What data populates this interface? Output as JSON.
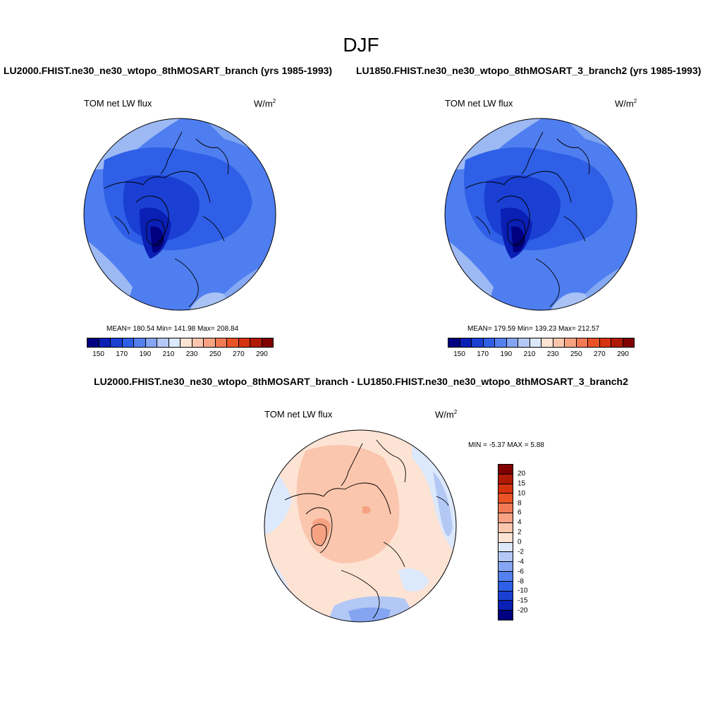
{
  "title": "DJF",
  "left_case_title": "LU2000.FHIST.ne30_ne30_wtopo_8thMOSART_branch (yrs 1985-1993)",
  "right_case_title": "LU1850.FHIST.ne30_ne30_wtopo_8thMOSART_3_branch2 (yrs 1985-1993)",
  "diff_title": "LU2000.FHIST.ne30_ne30_wtopo_8thMOSART_branch - LU1850.FHIST.ne30_ne30_wtopo_8thMOSART_3_branch2",
  "panels": {
    "left": {
      "variable": "TOM net LW flux",
      "units_base": "W/m",
      "units_exp": "2",
      "stats": "MEAN= 180.54  Min= 141.98  Max= 208.84"
    },
    "right": {
      "variable": "TOM net LW flux",
      "units_base": "W/m",
      "units_exp": "2",
      "stats": "MEAN= 179.59  Min= 139.23  Max= 212.57"
    },
    "diff": {
      "variable": "TOM net LW flux",
      "units_base": "W/m",
      "units_exp": "2",
      "stats": "MIN =  -5.37 MAX =   5.88"
    }
  },
  "colorbar_abs": {
    "colors": [
      "#000080",
      "#0a1fb4",
      "#1a3fd2",
      "#2e5fe6",
      "#5480f0",
      "#85a5f2",
      "#b4c8f5",
      "#dce8fb",
      "#fde3d4",
      "#fac6ad",
      "#f6a283",
      "#f27a55",
      "#ea5326",
      "#d53210",
      "#b01a04",
      "#800000"
    ],
    "labels": [
      "150",
      "170",
      "190",
      "210",
      "230",
      "250",
      "270",
      "290"
    ]
  },
  "colorbar_diff": {
    "colors": [
      "#800000",
      "#b01a04",
      "#d53210",
      "#ea5326",
      "#f27a55",
      "#f6a283",
      "#fac6ad",
      "#fde3d4",
      "#dce8fb",
      "#b4c8f5",
      "#85a5f2",
      "#5480f0",
      "#2e5fe6",
      "#1a3fd2",
      "#0a1fb4",
      "#000080"
    ],
    "labels": [
      "20",
      "15",
      "10",
      "8",
      "6",
      "4",
      "2",
      "0",
      "-2",
      "-4",
      "-6",
      "-8",
      "-10",
      "-15",
      "-20"
    ]
  }
}
